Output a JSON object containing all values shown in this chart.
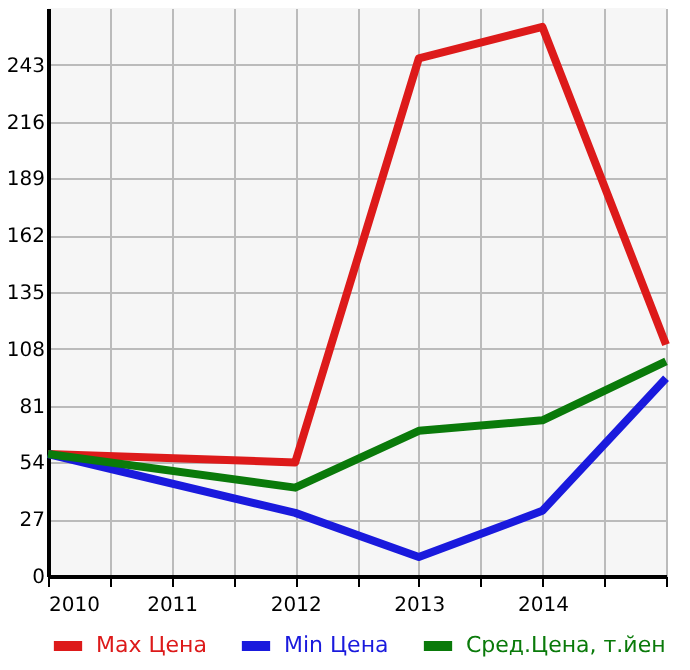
{
  "chart_data": {
    "type": "line",
    "x": [
      2010,
      2012,
      2013,
      2014,
      2015
    ],
    "series": [
      {
        "name": "Max Цена",
        "color": "#dd1a1a",
        "values": [
          58,
          54,
          246,
          261,
          110
        ]
      },
      {
        "name": "Min Цена",
        "color": "#1a1add",
        "values": [
          58,
          30,
          9,
          31,
          94
        ]
      },
      {
        "name": "Сред.Цена, т.йен",
        "color": "#0a7a0a",
        "values": [
          58,
          42,
          69,
          74,
          102
        ]
      }
    ],
    "xlim": [
      2010,
      2015
    ],
    "xticks": [
      2010,
      {
        "value": 2010.5,
        "label": null
      },
      2011,
      {
        "value": 2011.5,
        "label": null
      },
      2012,
      {
        "value": 2012.5,
        "label": null
      },
      2013,
      {
        "value": 2013.5,
        "label": null
      },
      2014,
      {
        "value": 2014.5,
        "label": null
      },
      {
        "value": 2015,
        "label": null
      }
    ],
    "ylim": [
      0,
      270
    ],
    "yticks": [
      0,
      27,
      54,
      81,
      108,
      135,
      162,
      189,
      216,
      243
    ],
    "grid": true,
    "legend": "bottom",
    "marker": "none",
    "line_style": "solid"
  }
}
